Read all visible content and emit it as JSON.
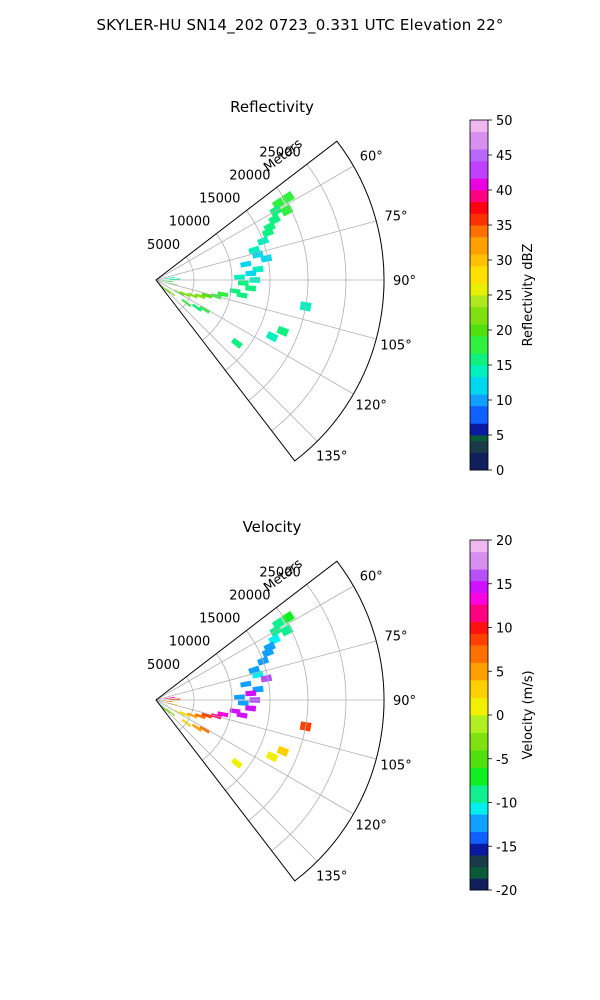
{
  "title": "SKYLER-HU  SN14_202  0723_0.331 UTC Elevation 22°",
  "chart_data": [
    {
      "type": "heatmap",
      "subtitle": "Reflectivity",
      "projection": "polar-sector",
      "theta_ticks": [
        "60°",
        "75°",
        "90°",
        "105°",
        "120°",
        "135°"
      ],
      "theta_range_deg": [
        52.5,
        142.5
      ],
      "r_label": "Meters",
      "r_ticks": [
        "5000",
        "10000",
        "15000",
        "20000",
        "25000"
      ],
      "r_range": [
        0,
        30000
      ],
      "grid": true,
      "colorbar": {
        "label": "Reflectivity dBZ",
        "range": [
          0,
          50
        ],
        "ticks": [
          "0",
          "5",
          "10",
          "15",
          "20",
          "25",
          "30",
          "35",
          "40",
          "45",
          "50"
        ]
      },
      "cells": [
        {
          "theta": 58,
          "r": 20500,
          "value": 17
        },
        {
          "theta": 58,
          "r": 19000,
          "value": 18
        },
        {
          "theta": 60,
          "r": 18200,
          "value": 16
        },
        {
          "theta": 62,
          "r": 19500,
          "value": 17
        },
        {
          "theta": 63,
          "r": 17500,
          "value": 16
        },
        {
          "theta": 65,
          "r": 16500,
          "value": 15
        },
        {
          "theta": 67,
          "r": 16000,
          "value": 16
        },
        {
          "theta": 70,
          "r": 15000,
          "value": 14
        },
        {
          "theta": 73,
          "r": 13500,
          "value": 13
        },
        {
          "theta": 76,
          "r": 13800,
          "value": 12
        },
        {
          "theta": 79,
          "r": 14800,
          "value": 11
        },
        {
          "theta": 80,
          "r": 12000,
          "value": 12
        },
        {
          "theta": 84,
          "r": 13500,
          "value": 13
        },
        {
          "theta": 86,
          "r": 12500,
          "value": 12
        },
        {
          "theta": 88,
          "r": 11000,
          "value": 13
        },
        {
          "theta": 90,
          "r": 13000,
          "value": 14
        },
        {
          "theta": 92,
          "r": 11500,
          "value": 15
        },
        {
          "theta": 95,
          "r": 12500,
          "value": 15
        },
        {
          "theta": 98,
          "r": 10500,
          "value": 16
        },
        {
          "theta": 100,
          "r": 11500,
          "value": 16
        },
        {
          "theta": 102,
          "r": 9000,
          "value": 18
        },
        {
          "theta": 105,
          "r": 8200,
          "value": 17
        },
        {
          "theta": 107,
          "r": 7000,
          "value": 19
        },
        {
          "theta": 110,
          "r": 6200,
          "value": 21
        },
        {
          "theta": 113,
          "r": 5200,
          "value": 22
        },
        {
          "theta": 116,
          "r": 4200,
          "value": 21
        },
        {
          "theta": 119,
          "r": 3500,
          "value": 20
        },
        {
          "theta": 121,
          "r": 7500,
          "value": 17
        },
        {
          "theta": 124,
          "r": 6500,
          "value": 16
        },
        {
          "theta": 127,
          "r": 5000,
          "value": 18
        },
        {
          "theta": 130,
          "r": 2500,
          "value": 22
        },
        {
          "theta": 133,
          "r": 1800,
          "value": 21
        },
        {
          "theta": 137,
          "r": 1200,
          "value": 19
        },
        {
          "theta": 140,
          "r": 900,
          "value": 17
        },
        {
          "theta": 88,
          "r": 2500,
          "value": 15
        },
        {
          "theta": 82,
          "r": 1800,
          "value": 14
        },
        {
          "theta": 96,
          "r": 1500,
          "value": 18
        },
        {
          "theta": 104,
          "r": 2200,
          "value": 19
        },
        {
          "theta": 112,
          "r": 18000,
          "value": 15
        },
        {
          "theta": 116,
          "r": 17000,
          "value": 14
        },
        {
          "theta": 128,
          "r": 13500,
          "value": 15
        },
        {
          "theta": 100,
          "r": 20000,
          "value": 14
        }
      ]
    },
    {
      "type": "heatmap",
      "subtitle": "Velocity",
      "projection": "polar-sector",
      "theta_ticks": [
        "60°",
        "75°",
        "90°",
        "105°",
        "120°",
        "135°"
      ],
      "theta_range_deg": [
        52.5,
        142.5
      ],
      "r_label": "Meters",
      "r_ticks": [
        "5000",
        "10000",
        "15000",
        "20000",
        "25000"
      ],
      "r_range": [
        0,
        30000
      ],
      "grid": true,
      "colorbar": {
        "label": "Velocity (m/s)",
        "range": [
          -20,
          20
        ],
        "ticks": [
          "-20",
          "-15",
          "-10",
          "-5",
          "0",
          "5",
          "10",
          "15",
          "20"
        ]
      },
      "cells": [
        {
          "theta": 58,
          "r": 20500,
          "value": -8
        },
        {
          "theta": 58,
          "r": 19000,
          "value": -9
        },
        {
          "theta": 60,
          "r": 18200,
          "value": -9
        },
        {
          "theta": 62,
          "r": 19500,
          "value": -10
        },
        {
          "theta": 63,
          "r": 17500,
          "value": -11
        },
        {
          "theta": 65,
          "r": 16500,
          "value": -12
        },
        {
          "theta": 67,
          "r": 16000,
          "value": -12
        },
        {
          "theta": 70,
          "r": 15000,
          "value": -12
        },
        {
          "theta": 73,
          "r": 13500,
          "value": -12
        },
        {
          "theta": 76,
          "r": 13800,
          "value": -11
        },
        {
          "theta": 79,
          "r": 14800,
          "value": 16
        },
        {
          "theta": 80,
          "r": 12000,
          "value": -12
        },
        {
          "theta": 84,
          "r": 13500,
          "value": -12
        },
        {
          "theta": 86,
          "r": 12500,
          "value": 15
        },
        {
          "theta": 88,
          "r": 11000,
          "value": -13
        },
        {
          "theta": 90,
          "r": 13000,
          "value": 16
        },
        {
          "theta": 92,
          "r": 11500,
          "value": -12
        },
        {
          "theta": 95,
          "r": 12500,
          "value": 15
        },
        {
          "theta": 98,
          "r": 10500,
          "value": 14
        },
        {
          "theta": 100,
          "r": 11500,
          "value": 15
        },
        {
          "theta": 102,
          "r": 9000,
          "value": 13
        },
        {
          "theta": 105,
          "r": 8200,
          "value": 11
        },
        {
          "theta": 107,
          "r": 7000,
          "value": 9
        },
        {
          "theta": 110,
          "r": 6200,
          "value": 7
        },
        {
          "theta": 113,
          "r": 5200,
          "value": 5
        },
        {
          "theta": 116,
          "r": 4200,
          "value": 3
        },
        {
          "theta": 119,
          "r": 3500,
          "value": 1
        },
        {
          "theta": 121,
          "r": 7500,
          "value": 6
        },
        {
          "theta": 124,
          "r": 6500,
          "value": 4
        },
        {
          "theta": 127,
          "r": 5000,
          "value": 2
        },
        {
          "theta": 130,
          "r": 2500,
          "value": -3
        },
        {
          "theta": 133,
          "r": 1800,
          "value": -4
        },
        {
          "theta": 137,
          "r": 1200,
          "value": -5
        },
        {
          "theta": 140,
          "r": 900,
          "value": -6
        },
        {
          "theta": 88,
          "r": 2500,
          "value": 8
        },
        {
          "theta": 82,
          "r": 1800,
          "value": 12
        },
        {
          "theta": 96,
          "r": 1500,
          "value": 4
        },
        {
          "theta": 104,
          "r": 2200,
          "value": 2
        },
        {
          "theta": 112,
          "r": 18000,
          "value": 2
        },
        {
          "theta": 116,
          "r": 17000,
          "value": 1
        },
        {
          "theta": 128,
          "r": 13500,
          "value": 0
        },
        {
          "theta": 100,
          "r": 20000,
          "value": 9
        }
      ]
    }
  ]
}
